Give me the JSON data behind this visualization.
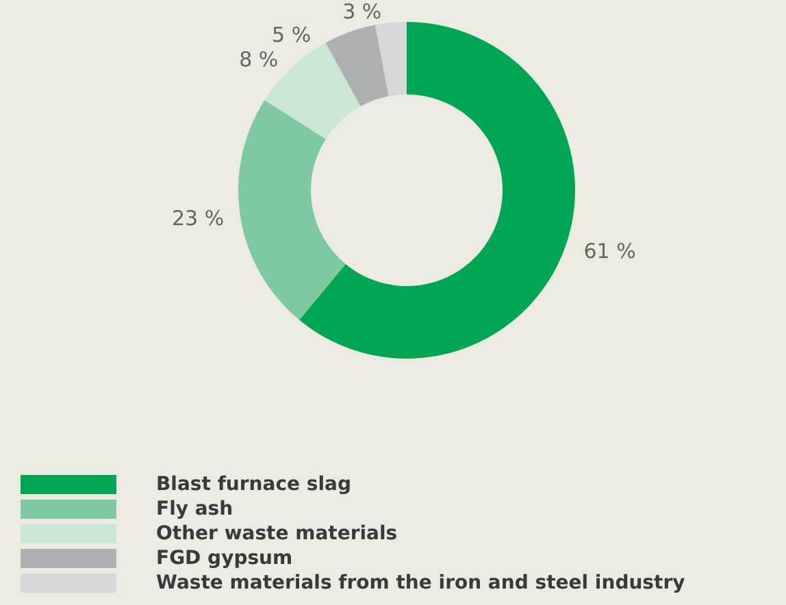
{
  "chart_data": {
    "type": "donut",
    "categories": [
      "Blast furnace slag",
      "Fly ash",
      "Other waste materials",
      "FGD gypsum",
      "Waste materials from the iron and steel industry"
    ],
    "values": [
      61,
      23,
      8,
      5,
      3
    ],
    "value_labels": [
      "61 %",
      "23 %",
      "8 %",
      "5 %",
      "3 %"
    ],
    "colors": [
      "#00a651",
      "#7fc9a1",
      "#c9e8d4",
      "#afb0b4",
      "#d6d7da"
    ],
    "legend": "bottom"
  }
}
